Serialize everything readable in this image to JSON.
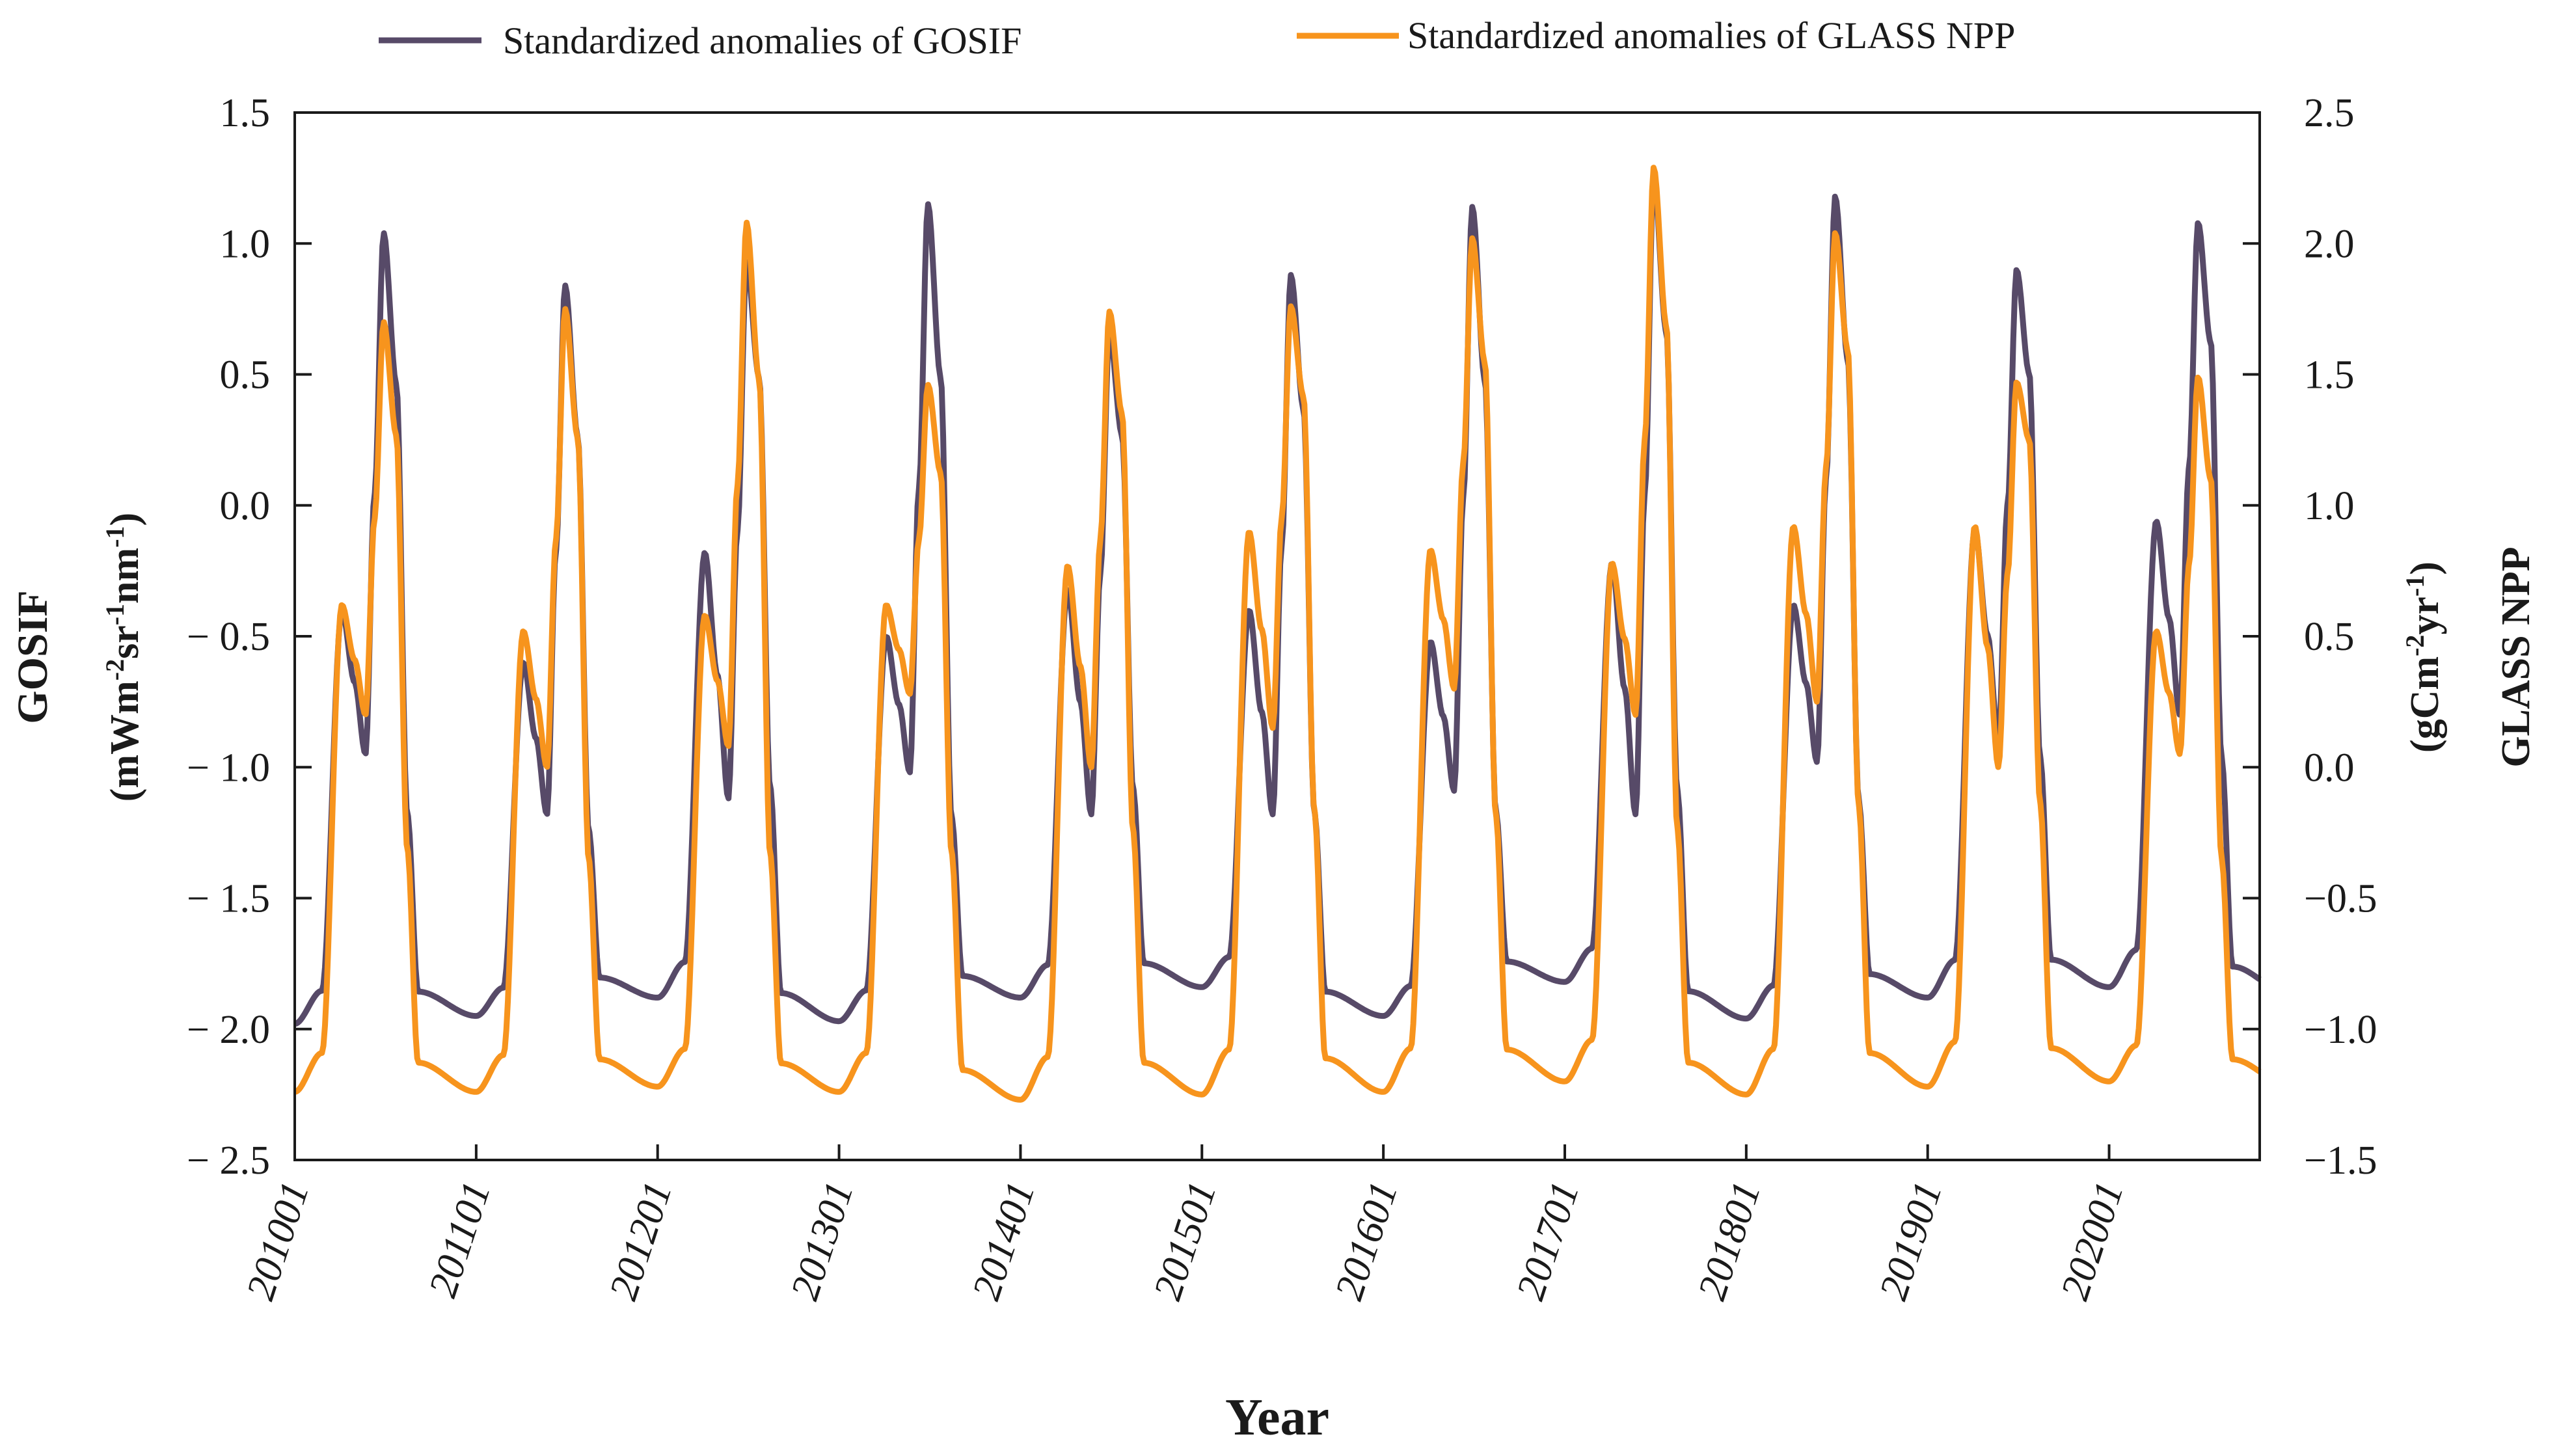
{
  "chart_data": {
    "type": "line",
    "xlabel": "Year",
    "ylabel_left": {
      "main": "GOSIF",
      "unit_prefix": "(mWm",
      "sup1": "-2",
      "mid1": "sr",
      "sup2": "-1",
      "mid2": "nm",
      "sup3": "-1",
      "unit_suffix": ")"
    },
    "ylabel_right": {
      "main": "GLASS NPP",
      "unit_prefix": "(gCm",
      "sup1": "-2",
      "mid1": "yr",
      "sup2": "-1",
      "unit_suffix": ")"
    },
    "ylim_left": [
      -2.5,
      1.5
    ],
    "ylim_right": [
      -1.5,
      2.5
    ],
    "yticks_left": [
      1.5,
      1.0,
      0.5,
      0.0,
      -0.5,
      -1.0,
      -1.5,
      -2.0,
      -2.5
    ],
    "yticks_left_labels": [
      "1.5",
      "1.0",
      "0.5",
      "0.0",
      "− 0.5",
      "− 1.0",
      "− 1.5",
      "− 2.0",
      "− 2.5"
    ],
    "yticks_right": [
      2.5,
      2.0,
      1.5,
      1.0,
      0.5,
      0.0,
      -0.5,
      -1.0,
      -1.5
    ],
    "yticks_right_labels": [
      "2.5",
      "2.0",
      "1.5",
      "1.0",
      "0.5",
      "0.0",
      "−0.5",
      "−1.0",
      "−1.5"
    ],
    "xticks": [
      "201001",
      "201101",
      "201201",
      "201301",
      "201401",
      "201501",
      "201601",
      "201701",
      "201801",
      "201901",
      "202001"
    ],
    "x_start_year": 2010,
    "x_end_year": 2020.83,
    "series": [
      {
        "name": "Standardized anomalies of GOSIF",
        "axis": "left",
        "color": "#574a68",
        "years": [
          {
            "min": -1.98,
            "peak": 1.04,
            "shoulder": -0.4,
            "dip": -0.95
          },
          {
            "min": -1.95,
            "peak": 0.84,
            "shoulder": -0.6,
            "dip": -1.18
          },
          {
            "min": -1.88,
            "peak": 0.93,
            "shoulder": -0.18,
            "dip": -1.12
          },
          {
            "min": -1.97,
            "peak": 1.15,
            "shoulder": -0.5,
            "dip": -1.02
          },
          {
            "min": -1.88,
            "peak": 0.66,
            "shoulder": -0.32,
            "dip": -1.18
          },
          {
            "min": -1.84,
            "peak": 0.88,
            "shoulder": -0.4,
            "dip": -1.18
          },
          {
            "min": -1.95,
            "peak": 1.14,
            "shoulder": -0.52,
            "dip": -1.09
          },
          {
            "min": -1.82,
            "peak": 1.25,
            "shoulder": -0.22,
            "dip": -1.18
          },
          {
            "min": -1.96,
            "peak": 1.18,
            "shoulder": -0.38,
            "dip": -0.98
          },
          {
            "min": -1.88,
            "peak": 0.9,
            "shoulder": -0.09,
            "dip": -0.9
          },
          {
            "min": -1.84,
            "peak": 1.08,
            "shoulder": -0.06,
            "dip": -0.8
          }
        ],
        "end_value": -1.87
      },
      {
        "name": "Standardized anomalies of GLASS NPP",
        "axis": "right",
        "color": "#f7941d",
        "years": [
          {
            "min": -1.24,
            "peak": 1.7,
            "shoulder": 0.62,
            "dip": 0.2
          },
          {
            "min": -1.24,
            "peak": 1.75,
            "shoulder": 0.52,
            "dip": 0.0
          },
          {
            "min": -1.22,
            "peak": 2.08,
            "shoulder": 0.58,
            "dip": 0.08
          },
          {
            "min": -1.24,
            "peak": 1.46,
            "shoulder": 0.62,
            "dip": 0.28
          },
          {
            "min": -1.27,
            "peak": 1.74,
            "shoulder": 0.77,
            "dip": 0.0
          },
          {
            "min": -1.25,
            "peak": 1.76,
            "shoulder": 0.9,
            "dip": 0.15
          },
          {
            "min": -1.24,
            "peak": 2.02,
            "shoulder": 0.83,
            "dip": 0.3
          },
          {
            "min": -1.2,
            "peak": 2.29,
            "shoulder": 0.78,
            "dip": 0.2
          },
          {
            "min": -1.25,
            "peak": 2.04,
            "shoulder": 0.92,
            "dip": 0.25
          },
          {
            "min": -1.22,
            "peak": 1.47,
            "shoulder": 0.92,
            "dip": 0.0
          },
          {
            "min": -1.2,
            "peak": 1.49,
            "shoulder": 0.52,
            "dip": 0.05
          }
        ],
        "end_value": -1.22
      }
    ],
    "legend_position": "top"
  }
}
